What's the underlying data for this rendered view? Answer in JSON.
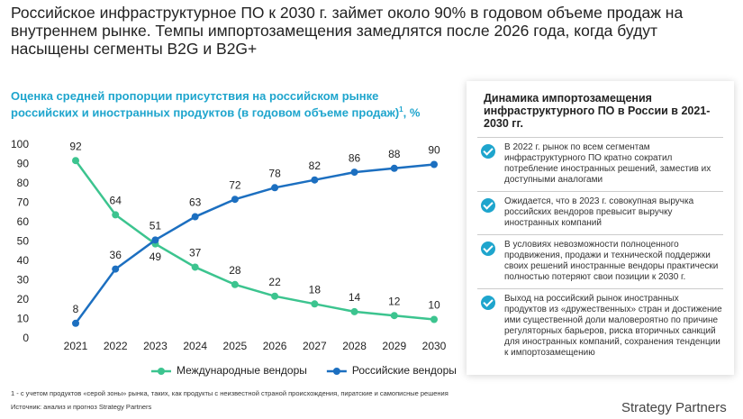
{
  "headline": "Российское инфраструктурное ПО к 2030 г. займет около 90% в годовом объеме продаж на внутреннем рынке. Темпы импортозамещения замедлятся после 2026 года, когда будут насыщены сегменты B2G и B2G+",
  "chart_data": {
    "type": "line",
    "title": "Оценка средней пропорции присутствия на российском рынке российских и иностранных продуктов (в годовом объеме продаж)",
    "title_note": "1",
    "y_label": ", %",
    "categories": [
      "2021",
      "2022",
      "2023",
      "2024",
      "2025",
      "2026",
      "2027",
      "2028",
      "2029",
      "2030"
    ],
    "series": [
      {
        "name": "Международные вендоры",
        "color": "#3cc48f",
        "values": [
          92,
          64,
          49,
          37,
          28,
          22,
          18,
          14,
          12,
          10
        ]
      },
      {
        "name": "Российские вендоры",
        "color": "#1c6fc0",
        "values": [
          8,
          36,
          51,
          63,
          72,
          78,
          82,
          86,
          88,
          90
        ]
      }
    ],
    "ylim": [
      0,
      100
    ],
    "yticks": [
      0,
      10,
      20,
      30,
      40,
      50,
      60,
      70,
      80,
      90,
      100
    ],
    "grid": false,
    "legend": "bottom"
  },
  "panel": {
    "title": "Динамика импортозамещения инфраструктурного ПО в России в 2021-2030 гг.",
    "items": [
      "В 2022 г. рынок по всем сегментам инфраструктурного ПО кратно сократил потребление иностранных решений, заместив их доступными аналогами",
      "Ожидается, что в 2023 г. совокупная выручка российских вендоров превысит выручку иностранных компаний",
      "В условиях невозможности полноценного продвижения, продажи и технической поддержки своих решений иностранные вендоры практически полностью потеряют свои позиции к 2030 г.",
      "Выход на российский рынок иностранных продуктов из «дружественных» стран и достижение ими существенной доли маловероятно по причине регуляторных барьеров, риска вторичных санкций для иностранных компаний, сохранения тенденции к импортозамещению"
    ]
  },
  "footnote": "1 - с учетом продуктов «серой зоны» рынка, таких, как продукты с неизвестной страной происхождения, пиратские и самописные решения",
  "source": "Источник: анализ и прогноз Strategy Partners",
  "brand": "Strategy Partners"
}
